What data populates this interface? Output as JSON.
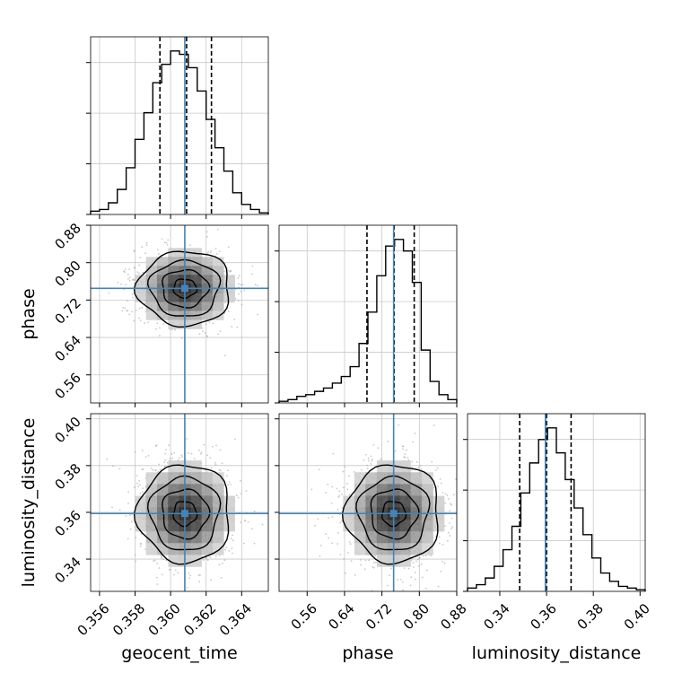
{
  "chart_data": {
    "type": "corner",
    "parameters": [
      {
        "name": "geocent_time",
        "label": "geocent_time",
        "truth": 0.3608,
        "quantiles": [
          0.3594,
          0.3609,
          0.3623
        ],
        "range": [
          0.3555,
          0.3655
        ],
        "ticks": [
          0.356,
          0.358,
          0.36,
          0.362,
          0.364
        ],
        "tick_labels": [
          "0.356",
          "0.358",
          "0.360",
          "0.362",
          "0.364"
        ],
        "histogram": {
          "bin_edges": [
            0.3555,
            0.356,
            0.3565,
            0.357,
            0.3575,
            0.358,
            0.3585,
            0.359,
            0.3595,
            0.36,
            0.3605,
            0.361,
            0.3615,
            0.362,
            0.3625,
            0.363,
            0.3635,
            0.364,
            0.3645,
            0.365,
            0.3655
          ],
          "counts": [
            0.02,
            0.03,
            0.07,
            0.15,
            0.28,
            0.45,
            0.61,
            0.79,
            0.9,
            0.98,
            0.96,
            0.88,
            0.74,
            0.57,
            0.4,
            0.26,
            0.13,
            0.06,
            0.03,
            0.01
          ]
        }
      },
      {
        "name": "phase",
        "label": "phase",
        "truth": 0.745,
        "quantiles": [
          0.688,
          0.746,
          0.789
        ],
        "range": [
          0.5,
          0.88
        ],
        "ticks": [
          0.56,
          0.64,
          0.72,
          0.8,
          0.88
        ],
        "tick_labels": [
          "0.56",
          "0.64",
          "0.72",
          "0.80",
          "0.88"
        ],
        "histogram": {
          "bin_edges": [
            0.5,
            0.519,
            0.538,
            0.557,
            0.576,
            0.595,
            0.614,
            0.633,
            0.652,
            0.671,
            0.69,
            0.709,
            0.728,
            0.747,
            0.766,
            0.785,
            0.804,
            0.823,
            0.842,
            0.861,
            0.88
          ],
          "counts": [
            0.01,
            0.02,
            0.04,
            0.05,
            0.07,
            0.09,
            0.12,
            0.16,
            0.22,
            0.36,
            0.55,
            0.77,
            0.95,
            0.99,
            0.92,
            0.73,
            0.32,
            0.13,
            0.05,
            0.02
          ]
        }
      },
      {
        "name": "luminosity_distance",
        "label": "luminosity_distance",
        "truth": 0.3595,
        "quantiles": [
          0.3485,
          0.36,
          0.3705
        ],
        "range": [
          0.3262,
          0.4022
        ],
        "ticks": [
          0.34,
          0.36,
          0.38,
          0.4
        ],
        "tick_labels": [
          "0.34",
          "0.36",
          "0.38",
          "0.40"
        ],
        "histogram": {
          "bin_edges": [
            0.3262,
            0.33,
            0.3338,
            0.3376,
            0.3414,
            0.3452,
            0.349,
            0.3528,
            0.3566,
            0.3604,
            0.3642,
            0.368,
            0.3718,
            0.3756,
            0.3794,
            0.3832,
            0.387,
            0.3908,
            0.3946,
            0.3984,
            0.4022
          ],
          "counts": [
            0.02,
            0.04,
            0.08,
            0.15,
            0.25,
            0.39,
            0.59,
            0.77,
            0.91,
            0.98,
            0.83,
            0.67,
            0.5,
            0.34,
            0.2,
            0.11,
            0.06,
            0.03,
            0.02,
            0.01
          ]
        }
      }
    ],
    "pairs": [
      {
        "x": "geocent_time",
        "y": "phase",
        "mean": [
          0.3608,
          0.745
        ],
        "sigma": [
          0.0013,
          0.04
        ],
        "contour_sigma_scales": [
          0.5,
          1.0,
          1.5,
          2.0
        ]
      },
      {
        "x": "geocent_time",
        "y": "luminosity_distance",
        "mean": [
          0.3608,
          0.3595
        ],
        "sigma": [
          0.0013,
          0.0105
        ],
        "contour_sigma_scales": [
          0.5,
          1.0,
          1.5,
          2.0
        ]
      },
      {
        "x": "phase",
        "y": "luminosity_distance",
        "mean": [
          0.745,
          0.3595
        ],
        "sigma": [
          0.05,
          0.0105
        ],
        "contour_sigma_scales": [
          0.5,
          1.0,
          1.5,
          2.0
        ]
      }
    ],
    "colors": {
      "truth": "#4682b4",
      "histogram": "#000000",
      "quantile": "#000000",
      "grid": "#c8c8c8",
      "scatter": "#9a9a9a",
      "contour": "#000000"
    },
    "grid": true
  }
}
